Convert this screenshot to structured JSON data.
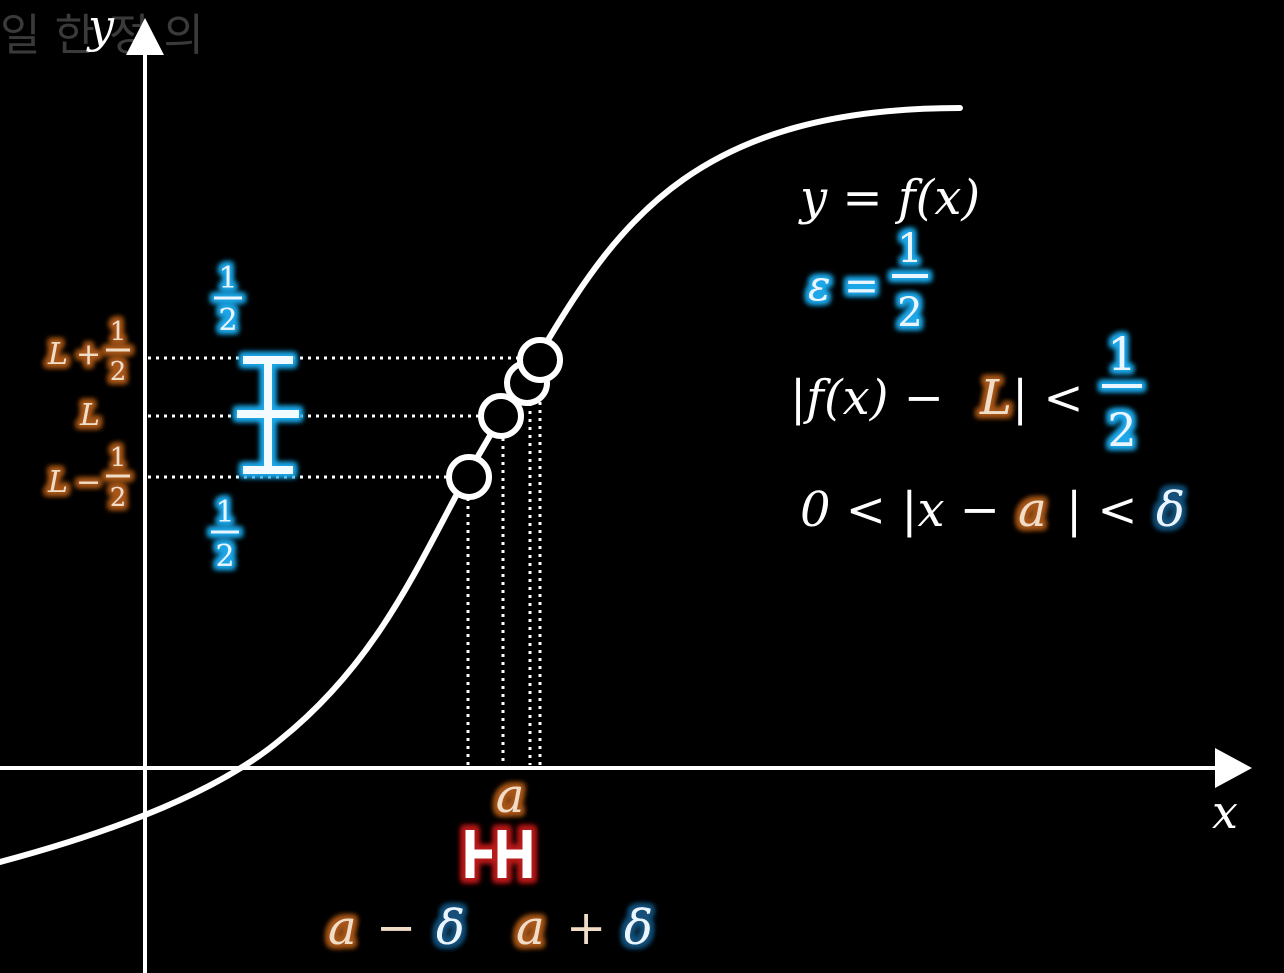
{
  "watermark": "일 한 정 의",
  "axes": {
    "x_label": "x",
    "y_label": "y"
  },
  "equations": {
    "function": "y = f(x)",
    "epsilon_lhs": "ε =",
    "epsilon_num": "1",
    "epsilon_den": "2",
    "ineq1_lhs": "|f(x) −",
    "ineq1_L": "L",
    "ineq1_mid": "| <",
    "ineq1_num": "1",
    "ineq1_den": "2",
    "ineq2_lhs": "0 < |x −",
    "ineq2_a": "a",
    "ineq2_mid": "| <",
    "ineq2_delta": "δ"
  },
  "y_ticks": {
    "upper_L": "L",
    "upper_op": "+",
    "upper_num": "1",
    "upper_den": "2",
    "mid": "L",
    "lower_L": "L",
    "lower_op": "−",
    "lower_num": "1",
    "lower_den": "2"
  },
  "epsilon_labels": {
    "top_num": "1",
    "top_den": "2",
    "bottom_num": "1",
    "bottom_den": "2"
  },
  "x_ticks": {
    "a": "a",
    "left_a": "a",
    "left_op": "−",
    "left_delta": "δ",
    "right_a": "a",
    "right_op": "+",
    "right_delta": "δ"
  },
  "colors": {
    "background": "#000000",
    "curve": "#ffffff",
    "epsilon_blue": "#29b6f6",
    "L_orange": "#b8621d",
    "delta_red": "#c62828"
  }
}
